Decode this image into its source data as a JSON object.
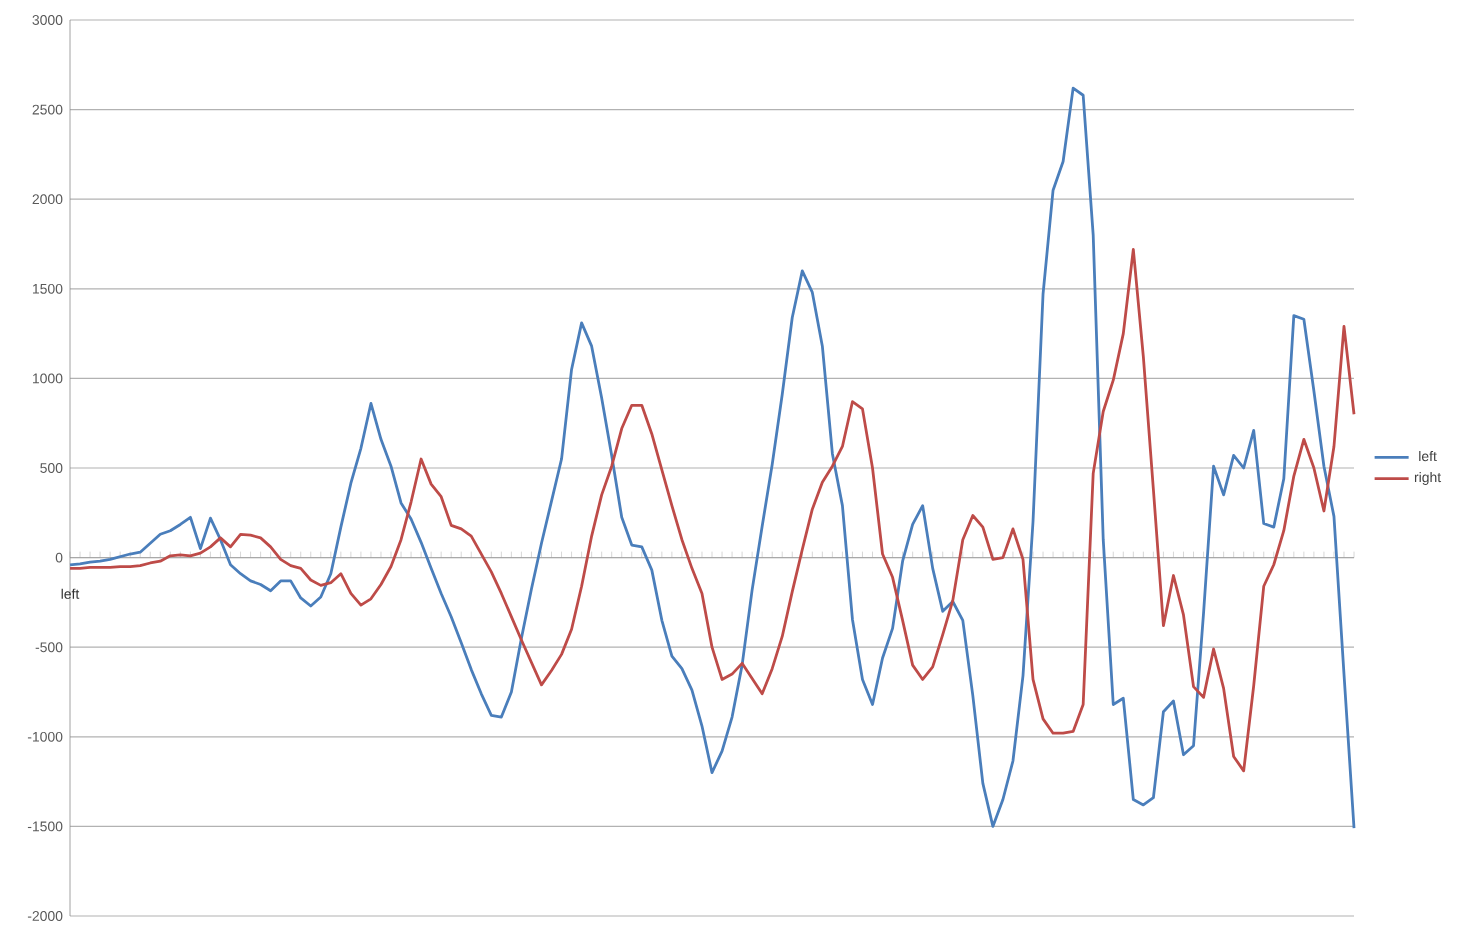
{
  "chart_data": {
    "type": "line",
    "ylim": [
      -2000,
      3000
    ],
    "yticks": [
      -2000,
      -1500,
      -1000,
      -500,
      0,
      500,
      1000,
      1500,
      2000,
      2500,
      3000
    ],
    "grid": "y",
    "legend": "right",
    "categories": [
      "left",
      null,
      null,
      null,
      null,
      null,
      null,
      null,
      null,
      null,
      null,
      null,
      null,
      null,
      null,
      null,
      null,
      null,
      null,
      null,
      null,
      null,
      null,
      null,
      null,
      null,
      null,
      null,
      null,
      null,
      null,
      null,
      null,
      null,
      null,
      null,
      null,
      null,
      null,
      null,
      null,
      null,
      null,
      null,
      null,
      null,
      null,
      null,
      null,
      null,
      null,
      null,
      null,
      null,
      null,
      null,
      null,
      null,
      null,
      null,
      null,
      null,
      null,
      null,
      null,
      null,
      null,
      null,
      null,
      null,
      null,
      null,
      null,
      null,
      null,
      null,
      null,
      null,
      null,
      null,
      null,
      null,
      null,
      null,
      null,
      null,
      null,
      null,
      null,
      null,
      null,
      null,
      null,
      null,
      null,
      null,
      null,
      null,
      null,
      null,
      null,
      null,
      null,
      null,
      null,
      null,
      null,
      null,
      null,
      null,
      null,
      null,
      null,
      null,
      null,
      null,
      null,
      null,
      null,
      null,
      null,
      null,
      null,
      null,
      null,
      null,
      null,
      null,
      null
    ],
    "series": [
      {
        "name": "left",
        "color": "#4a7ebb",
        "values": [
          -40,
          -35,
          -25,
          -20,
          -10,
          5,
          20,
          30,
          80,
          130,
          150,
          185,
          225,
          50,
          220,
          100,
          -40,
          -90,
          -130,
          -150,
          -185,
          -130,
          -130,
          -225,
          -270,
          -220,
          -90,
          170,
          415,
          610,
          860,
          660,
          510,
          305,
          215,
          85,
          -60,
          -200,
          -330,
          -475,
          -625,
          -760,
          -880,
          -890,
          -750,
          -450,
          -175,
          80,
          315,
          550,
          1050,
          1310,
          1180,
          890,
          570,
          225,
          70,
          60,
          -70,
          -350,
          -550,
          -620,
          -740,
          -940,
          -1200,
          -1080,
          -890,
          -600,
          -180,
          175,
          520,
          910,
          1340,
          1600,
          1480,
          1180,
          580,
          290,
          -345,
          -680,
          -820,
          -560,
          -395,
          -20,
          185,
          290,
          -60,
          -300,
          -245,
          -350,
          -770,
          -1260,
          -1500,
          -1350,
          -1135,
          -660,
          200,
          1470,
          2050,
          2210,
          2620,
          2580,
          1800,
          100,
          -820,
          -785,
          -1350,
          -1380,
          -1340,
          -860,
          -800,
          -1100,
          -1050,
          -310,
          510,
          350,
          570,
          500,
          710,
          190,
          170,
          440,
          1350,
          1330,
          930,
          510,
          230,
          -650,
          -1510
        ]
      },
      {
        "name": "right",
        "color": "#be4b48",
        "values": [
          -60,
          -60,
          -55,
          -55,
          -55,
          -50,
          -50,
          -45,
          -30,
          -20,
          10,
          15,
          10,
          25,
          60,
          110,
          60,
          130,
          125,
          110,
          60,
          -10,
          -45,
          -60,
          -125,
          -155,
          -140,
          -90,
          -200,
          -265,
          -230,
          -150,
          -50,
          100,
          310,
          550,
          410,
          340,
          180,
          160,
          120,
          20,
          -80,
          -200,
          -330,
          -460,
          -585,
          -710,
          -630,
          -540,
          -400,
          -160,
          120,
          350,
          510,
          720,
          850,
          850,
          690,
          490,
          290,
          100,
          -60,
          -200,
          -500,
          -680,
          -650,
          -590,
          -675,
          -760,
          -620,
          -440,
          -190,
          45,
          270,
          420,
          510,
          620,
          870,
          830,
          500,
          20,
          -110,
          -350,
          -600,
          -680,
          -610,
          -430,
          -240,
          100,
          235,
          170,
          -10,
          0,
          160,
          -10,
          -680,
          -900,
          -980,
          -980,
          -970,
          -820,
          470,
          815,
          990,
          1250,
          1720,
          1120,
          380,
          -380,
          -100,
          -320,
          -720,
          -780,
          -510,
          -730,
          -1110,
          -1190,
          -715,
          -160,
          -40,
          150,
          455,
          660,
          500,
          260,
          620,
          1290,
          800
        ]
      }
    ]
  }
}
